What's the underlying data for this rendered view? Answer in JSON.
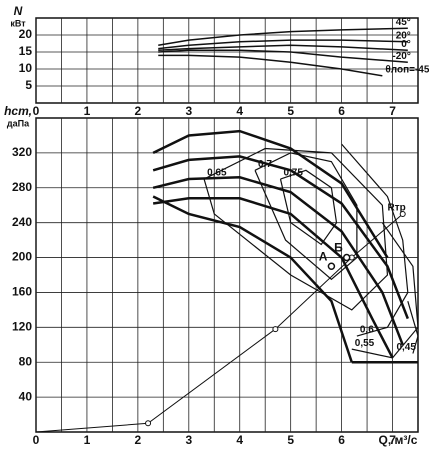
{
  "chart_data": [
    {
      "type": "line",
      "y_label": "N",
      "y_unit": "кВт",
      "xlim": [
        0,
        7.5
      ],
      "xticks": [
        0,
        1,
        2,
        3,
        4,
        5,
        6,
        7
      ],
      "ylim": [
        0,
        25
      ],
      "yticks": [
        5,
        10,
        15,
        20
      ],
      "grid": true,
      "color": "#111",
      "series": [
        {
          "name": "45°",
          "x": [
            2.4,
            3,
            4,
            5,
            6,
            7.3
          ],
          "y": [
            17,
            18.5,
            20,
            21,
            21.5,
            22
          ]
        },
        {
          "name": "20°",
          "x": [
            2.4,
            3,
            4,
            5,
            6,
            7.3
          ],
          "y": [
            16,
            17,
            18,
            18.5,
            18.5,
            18
          ]
        },
        {
          "name": "0°",
          "x": [
            2.4,
            3,
            4,
            5,
            6,
            7.3
          ],
          "y": [
            15.5,
            16,
            16.5,
            17,
            16.5,
            15.5
          ]
        },
        {
          "name": "-20°",
          "x": [
            2.4,
            3,
            4,
            5,
            6,
            7.3
          ],
          "y": [
            15,
            15.5,
            15.5,
            15,
            13.5,
            12
          ]
        },
        {
          "name": "θлоп=-45°",
          "x": [
            2.4,
            3,
            4,
            5,
            6,
            6.8
          ],
          "y": [
            14,
            14,
            13.5,
            12,
            10,
            8
          ]
        }
      ]
    },
    {
      "type": "line",
      "y_label": "hст,",
      "y_unit": "даПа",
      "x_label": "Q, м³/с",
      "xlim": [
        0,
        7.5
      ],
      "xticks": [
        0,
        1,
        2,
        3,
        4,
        5,
        6,
        7
      ],
      "ylim": [
        0,
        360
      ],
      "yticks": [
        40,
        80,
        120,
        160,
        200,
        240,
        280,
        320
      ],
      "grid": true,
      "color": "#111",
      "series": [
        {
          "x": [
            2.3,
            3,
            4,
            5,
            6,
            6.9
          ],
          "y": [
            320,
            340,
            345,
            325,
            285,
            200
          ],
          "width": 2.5
        },
        {
          "x": [
            2.3,
            3,
            4,
            5,
            6,
            6.9,
            7.3
          ],
          "y": [
            300,
            312,
            316,
            300,
            262,
            190,
            130
          ],
          "width": 2.5
        },
        {
          "x": [
            2.3,
            3,
            4,
            5,
            6,
            6.8,
            7.2
          ],
          "y": [
            280,
            290,
            292,
            275,
            230,
            160,
            100
          ],
          "width": 2.5
        },
        {
          "x": [
            2.3,
            3,
            4,
            5,
            6,
            6.6,
            7.0
          ],
          "y": [
            262,
            268,
            268,
            250,
            200,
            130,
            85
          ],
          "width": 2.5
        },
        {
          "x": [
            2.3,
            3,
            4,
            5,
            5.8,
            6.2
          ],
          "y": [
            270,
            250,
            235,
            200,
            150,
            80
          ],
          "width": 2.5
        },
        {
          "x": [
            6.2,
            7.5
          ],
          "y": [
            80,
            80
          ],
          "width": 2.5
        },
        {
          "name": "0,75",
          "x": [
            4.8,
            5.3,
            5.8,
            5.9,
            5.6,
            5.0,
            4.8
          ],
          "y": [
            290,
            300,
            280,
            240,
            215,
            240,
            290
          ],
          "width": 1.2
        },
        {
          "name": "0,7",
          "x": [
            4.3,
            5,
            5.8,
            6.3,
            6.3,
            5.8,
            4.9,
            4.3
          ],
          "y": [
            300,
            320,
            310,
            260,
            200,
            175,
            220,
            300
          ],
          "width": 1.2
        },
        {
          "name": "0,65",
          "x": [
            3.3,
            4.5,
            5.8,
            6.8,
            6.9,
            6.2,
            5,
            3.5,
            3.3
          ],
          "y": [
            290,
            325,
            320,
            260,
            180,
            140,
            180,
            250,
            290
          ],
          "width": 1.2
        },
        {
          "name": "0,6",
          "x": [
            6.0,
            6.9,
            7.2,
            7.3,
            6.9,
            6.3
          ],
          "y": [
            330,
            270,
            220,
            160,
            120,
            110
          ],
          "width": 1.2
        },
        {
          "name": "0,55",
          "x": [
            6.8,
            7.4,
            7.5,
            7.0,
            6.2
          ],
          "y": [
            240,
            190,
            120,
            85,
            95
          ],
          "width": 1.2
        },
        {
          "name": "0,45",
          "x": [
            7.3,
            7.5,
            7.4
          ],
          "y": [
            150,
            110,
            90
          ],
          "width": 1.2
        },
        {
          "name": "Rтр",
          "x": [
            0,
            2.2,
            4.7,
            6.2,
            7.2
          ],
          "y": [
            0,
            10,
            118,
            200,
            250
          ],
          "width": 1,
          "markers": true
        }
      ],
      "points": [
        {
          "label": "А",
          "x": 5.8,
          "y": 190
        },
        {
          "label": "Б",
          "x": 6.1,
          "y": 200
        }
      ]
    }
  ]
}
